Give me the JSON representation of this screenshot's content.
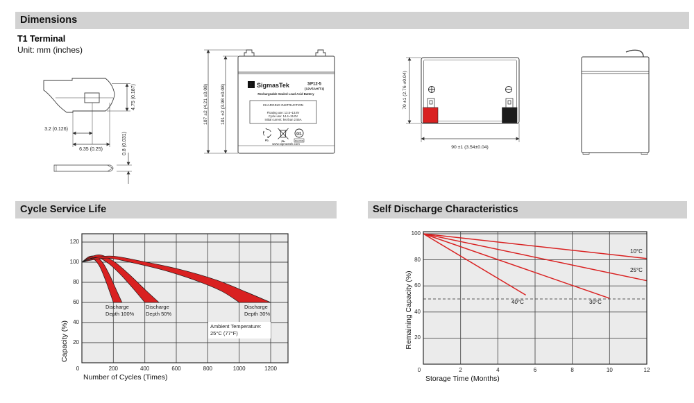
{
  "sections": {
    "dimensions": "Dimensions",
    "cycle": "Cycle Service Life",
    "self_discharge": "Self Discharge Characteristics"
  },
  "dimensions_section": {
    "subtitle": "T1 Terminal",
    "unit_note": "Unit: mm (inches)",
    "terminal_drawing": {
      "dim_height": "4.75 (0.187)",
      "dim_hole_offset": "3.2 (0.126)",
      "dim_width": "6.35 (0.25)",
      "dim_thickness": "0.8 (0.031)"
    },
    "front_view": {
      "dim_total_height": "107 ±2 (4.21 ±0.08)",
      "dim_body_height": "101 ±2 (3.98 ±0.08)",
      "label": {
        "logo_glyph": "Σ",
        "brand": "SigmasTek",
        "model": "SP12-5",
        "spec": "(12V5AH/T1)",
        "type_line": "Rechargeable Sealed Lead-Acid Battery",
        "charging_title": "CHARGING INSTRUCTION",
        "charging_lines": [
          "Floating use: 13.5~13.8V",
          "Cycle use: 14.4~15.0V",
          "Initial current: les than 2.55A"
        ],
        "pb_recycle_label": "Pb.",
        "pb_bin_label": "Pb",
        "ul_mark": "UL",
        "ul_code": "MH47639",
        "website": "www.sigmastek.com"
      }
    },
    "top_view": {
      "dim_height": "70 ±1 (2.76 ±0.04)",
      "dim_width": "90 ±1 (3.54±0.04)"
    }
  },
  "colors": {
    "accent_red": "#d92121",
    "terminal_black": "#1b1b1b",
    "section_bar": "#d2d2d2",
    "plot_bg": "#ebebeb"
  },
  "chart_data": [
    {
      "type": "area",
      "title": "Cycle Service Life",
      "xlabel": "Number of Cycles (Times)",
      "ylabel": "Capacity (%)",
      "xlim": [
        0,
        1310
      ],
      "ylim": [
        0,
        128
      ],
      "x_ticks": [
        0,
        200,
        400,
        600,
        800,
        1000,
        1200
      ],
      "y_ticks": [
        0,
        20,
        40,
        60,
        80,
        100,
        120
      ],
      "grid": true,
      "ambient_note": "Ambient Temperature: 25°C (77°F)",
      "series": [
        {
          "name": "Discharge Depth 100%",
          "band_upper": [
            [
              0,
              100
            ],
            [
              45,
              105.5
            ],
            [
              90,
              105.5
            ],
            [
              135,
              99
            ],
            [
              180,
              86
            ],
            [
              220,
              72
            ],
            [
              255,
              60
            ]
          ],
          "band_lower": [
            [
              0,
              100
            ],
            [
              38,
              103
            ],
            [
              75,
              103
            ],
            [
              112,
              96
            ],
            [
              148,
              83
            ],
            [
              178,
              70
            ],
            [
              200,
              60
            ]
          ]
        },
        {
          "name": "Discharge Depth 50%",
          "band_upper": [
            [
              0,
              100
            ],
            [
              60,
              105.5
            ],
            [
              125,
              107
            ],
            [
              210,
              100
            ],
            [
              300,
              88
            ],
            [
              400,
              73
            ],
            [
              490,
              60
            ]
          ],
          "band_lower": [
            [
              0,
              100
            ],
            [
              50,
              103.5
            ],
            [
              105,
              104.5
            ],
            [
              175,
              98
            ],
            [
              250,
              87
            ],
            [
              330,
              73
            ],
            [
              400,
              60
            ]
          ]
        },
        {
          "name": "Discharge Depth 30%",
          "band_upper": [
            [
              0,
              100
            ],
            [
              90,
              104.5
            ],
            [
              200,
              106
            ],
            [
              380,
              101
            ],
            [
              620,
              93
            ],
            [
              860,
              82
            ],
            [
              1050,
              70
            ],
            [
              1200,
              60
            ]
          ],
          "band_lower": [
            [
              0,
              100
            ],
            [
              75,
              102.5
            ],
            [
              170,
              104
            ],
            [
              320,
              99.5
            ],
            [
              520,
              92
            ],
            [
              720,
              82
            ],
            [
              890,
              71
            ],
            [
              1000,
              60
            ]
          ]
        }
      ]
    },
    {
      "type": "line",
      "title": "Self Discharge Characteristics",
      "xlabel": "Storage Time (Months)",
      "ylabel": "Remaining Capacity (%)",
      "xlim": [
        0,
        12
      ],
      "ylim": [
        0,
        101.6
      ],
      "x_ticks": [
        0,
        2,
        4,
        6,
        8,
        10,
        12
      ],
      "y_ticks": [
        0,
        20,
        40,
        60,
        80,
        100
      ],
      "grid": true,
      "dashed_line_y": 50,
      "series": [
        {
          "name": "10°C",
          "points": [
            [
              0,
              100
            ],
            [
              12,
              81
            ]
          ]
        },
        {
          "name": "25°C",
          "points": [
            [
              0,
              100
            ],
            [
              12,
              64
            ]
          ]
        },
        {
          "name": "30°C",
          "points": [
            [
              0,
              100
            ],
            [
              10,
              50.5
            ]
          ]
        },
        {
          "name": "40°C",
          "points": [
            [
              0,
              100
            ],
            [
              5.5,
              53
            ]
          ]
        }
      ]
    }
  ]
}
